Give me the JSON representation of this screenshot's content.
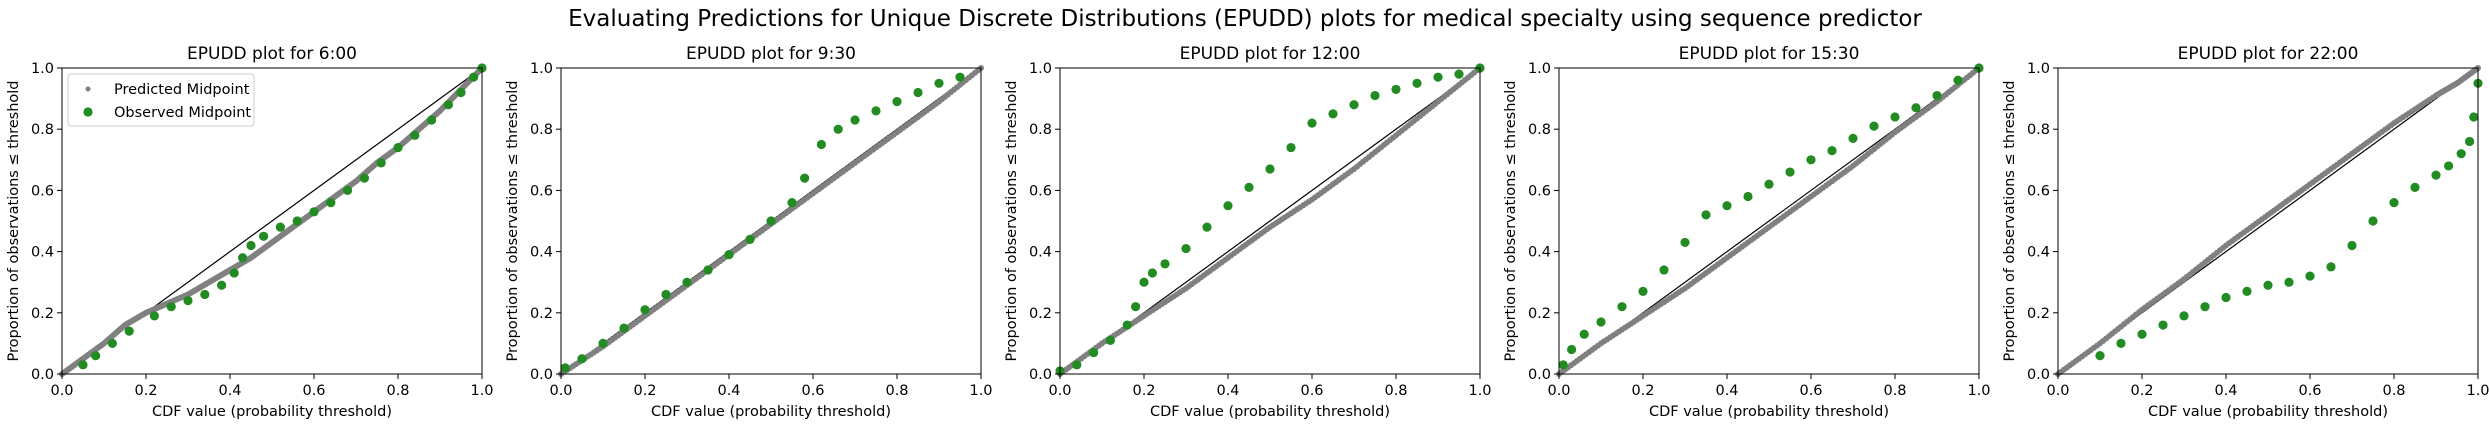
{
  "figure": {
    "suptitle": "Evaluating Predictions for Unique Discrete Distributions (EPUDD) plots for medical specialty using sequence predictor"
  },
  "colors": {
    "predicted": "#808080",
    "observed": "#228B22",
    "diagonal": "#000000"
  },
  "chart_data": [
    {
      "type": "scatter",
      "title": "EPUDD plot for 6:00",
      "xlabel": "CDF value (probability threshold)",
      "ylabel": "Proportion of observations ≤ threshold",
      "xlim": [
        0,
        1
      ],
      "ylim": [
        0,
        1
      ],
      "xticks": [
        "0.0",
        "0.2",
        "0.4",
        "0.6",
        "0.8",
        "1.0"
      ],
      "yticks": [
        "0.0",
        "0.2",
        "0.4",
        "0.6",
        "0.8",
        "1.0"
      ],
      "grid": false,
      "legend": {
        "placement": "top-left",
        "entries": [
          "Predicted Midpoint",
          "Observed Midpoint"
        ]
      },
      "reference_line": "y = x",
      "series": [
        {
          "name": "Predicted Midpoint",
          "marker": "small-dot",
          "x": [
            0,
            0.05,
            0.1,
            0.15,
            0.2,
            0.25,
            0.3,
            0.35,
            0.4,
            0.45,
            0.5,
            0.55,
            0.6,
            0.65,
            0.7,
            0.75,
            0.8,
            0.85,
            0.9,
            0.95,
            1.0
          ],
          "y": [
            0,
            0.05,
            0.1,
            0.16,
            0.2,
            0.23,
            0.26,
            0.3,
            0.34,
            0.38,
            0.43,
            0.48,
            0.53,
            0.58,
            0.63,
            0.69,
            0.74,
            0.8,
            0.86,
            0.93,
            1.0
          ]
        },
        {
          "name": "Observed Midpoint",
          "marker": "dot",
          "x": [
            0.05,
            0.08,
            0.12,
            0.16,
            0.22,
            0.26,
            0.3,
            0.34,
            0.38,
            0.41,
            0.43,
            0.45,
            0.48,
            0.52,
            0.56,
            0.6,
            0.64,
            0.68,
            0.72,
            0.76,
            0.8,
            0.84,
            0.88,
            0.92,
            0.95,
            0.98,
            1.0
          ],
          "y": [
            0.03,
            0.06,
            0.1,
            0.14,
            0.19,
            0.22,
            0.24,
            0.26,
            0.29,
            0.33,
            0.38,
            0.42,
            0.45,
            0.48,
            0.5,
            0.53,
            0.56,
            0.6,
            0.64,
            0.69,
            0.74,
            0.78,
            0.83,
            0.88,
            0.92,
            0.97,
            1.0
          ]
        }
      ]
    },
    {
      "type": "scatter",
      "title": "EPUDD plot for 9:30",
      "xlabel": "CDF value (probability threshold)",
      "ylabel": "Proportion of observations ≤ threshold",
      "xlim": [
        0,
        1
      ],
      "ylim": [
        0,
        1
      ],
      "xticks": [
        "0.0",
        "0.2",
        "0.4",
        "0.6",
        "0.8",
        "1.0"
      ],
      "yticks": [
        "0.0",
        "0.2",
        "0.4",
        "0.6",
        "0.8",
        "1.0"
      ],
      "grid": false,
      "reference_line": "y = x",
      "series": [
        {
          "name": "Predicted Midpoint",
          "marker": "small-dot",
          "x": [
            0,
            0.1,
            0.2,
            0.3,
            0.4,
            0.5,
            0.6,
            0.7,
            0.8,
            0.9,
            1.0
          ],
          "y": [
            0,
            0.09,
            0.19,
            0.29,
            0.39,
            0.49,
            0.59,
            0.69,
            0.79,
            0.89,
            1.0
          ]
        },
        {
          "name": "Observed Midpoint",
          "marker": "dot",
          "x": [
            0.01,
            0.05,
            0.1,
            0.15,
            0.2,
            0.25,
            0.3,
            0.35,
            0.4,
            0.45,
            0.5,
            0.55,
            0.58,
            0.62,
            0.66,
            0.7,
            0.75,
            0.8,
            0.85,
            0.9,
            0.95
          ],
          "y": [
            0.02,
            0.05,
            0.1,
            0.15,
            0.21,
            0.26,
            0.3,
            0.34,
            0.39,
            0.44,
            0.5,
            0.56,
            0.64,
            0.75,
            0.8,
            0.83,
            0.86,
            0.89,
            0.92,
            0.95,
            0.97
          ]
        }
      ]
    },
    {
      "type": "scatter",
      "title": "EPUDD plot for 12:00",
      "xlabel": "CDF value (probability threshold)",
      "ylabel": "Proportion of observations ≤ threshold",
      "xlim": [
        0,
        1
      ],
      "ylim": [
        0,
        1
      ],
      "xticks": [
        "0.0",
        "0.2",
        "0.4",
        "0.6",
        "0.8",
        "1.0"
      ],
      "yticks": [
        "0.0",
        "0.2",
        "0.4",
        "0.6",
        "0.8",
        "1.0"
      ],
      "grid": false,
      "reference_line": "y = x",
      "series": [
        {
          "name": "Predicted Midpoint",
          "marker": "small-dot",
          "x": [
            0,
            0.1,
            0.2,
            0.3,
            0.4,
            0.5,
            0.6,
            0.7,
            0.8,
            0.9,
            1.0
          ],
          "y": [
            0,
            0.1,
            0.19,
            0.28,
            0.38,
            0.48,
            0.57,
            0.67,
            0.78,
            0.89,
            1.0
          ]
        },
        {
          "name": "Observed Midpoint",
          "marker": "dot",
          "x": [
            0.0,
            0.04,
            0.08,
            0.12,
            0.16,
            0.18,
            0.2,
            0.22,
            0.25,
            0.3,
            0.35,
            0.4,
            0.45,
            0.5,
            0.55,
            0.6,
            0.65,
            0.7,
            0.75,
            0.8,
            0.85,
            0.9,
            0.95,
            1.0
          ],
          "y": [
            0.01,
            0.03,
            0.07,
            0.11,
            0.16,
            0.22,
            0.3,
            0.33,
            0.36,
            0.41,
            0.48,
            0.55,
            0.61,
            0.67,
            0.74,
            0.82,
            0.85,
            0.88,
            0.91,
            0.93,
            0.95,
            0.97,
            0.98,
            1.0
          ]
        }
      ]
    },
    {
      "type": "scatter",
      "title": "EPUDD plot for 15:30",
      "xlabel": "CDF value (probability threshold)",
      "ylabel": "Proportion of observations ≤ threshold",
      "xlim": [
        0,
        1
      ],
      "ylim": [
        0,
        1
      ],
      "xticks": [
        "0.0",
        "0.2",
        "0.4",
        "0.6",
        "0.8",
        "1.0"
      ],
      "yticks": [
        "0.0",
        "0.2",
        "0.4",
        "0.6",
        "0.8",
        "1.0"
      ],
      "grid": false,
      "reference_line": "y = x",
      "series": [
        {
          "name": "Predicted Midpoint",
          "marker": "small-dot",
          "x": [
            0,
            0.1,
            0.2,
            0.3,
            0.4,
            0.5,
            0.6,
            0.7,
            0.8,
            0.9,
            1.0
          ],
          "y": [
            0,
            0.1,
            0.19,
            0.28,
            0.38,
            0.48,
            0.58,
            0.68,
            0.79,
            0.89,
            1.0
          ]
        },
        {
          "name": "Observed Midpoint",
          "marker": "dot",
          "x": [
            0.01,
            0.03,
            0.06,
            0.1,
            0.15,
            0.2,
            0.25,
            0.3,
            0.35,
            0.4,
            0.45,
            0.5,
            0.55,
            0.6,
            0.65,
            0.7,
            0.75,
            0.8,
            0.85,
            0.9,
            0.95,
            1.0
          ],
          "y": [
            0.03,
            0.08,
            0.13,
            0.17,
            0.22,
            0.27,
            0.34,
            0.43,
            0.52,
            0.55,
            0.58,
            0.62,
            0.66,
            0.7,
            0.73,
            0.77,
            0.81,
            0.84,
            0.87,
            0.91,
            0.96,
            1.0
          ]
        }
      ]
    },
    {
      "type": "scatter",
      "title": "EPUDD plot for 22:00",
      "xlabel": "CDF value (probability threshold)",
      "ylabel": "Proportion of observations ≤ threshold",
      "xlim": [
        0,
        1
      ],
      "ylim": [
        0,
        1
      ],
      "xticks": [
        "0.0",
        "0.2",
        "0.4",
        "0.6",
        "0.8",
        "1.0"
      ],
      "yticks": [
        "0.0",
        "0.2",
        "0.4",
        "0.6",
        "0.8",
        "1.0"
      ],
      "grid": false,
      "reference_line": "y = x",
      "series": [
        {
          "name": "Predicted Midpoint",
          "marker": "small-dot",
          "x": [
            0,
            0.1,
            0.2,
            0.3,
            0.4,
            0.5,
            0.6,
            0.7,
            0.8,
            0.9,
            0.95,
            1.0
          ],
          "y": [
            0,
            0.1,
            0.21,
            0.31,
            0.42,
            0.52,
            0.62,
            0.72,
            0.82,
            0.91,
            0.95,
            1.0
          ]
        },
        {
          "name": "Observed Midpoint",
          "marker": "dot",
          "x": [
            0.1,
            0.15,
            0.2,
            0.25,
            0.3,
            0.35,
            0.4,
            0.45,
            0.5,
            0.55,
            0.6,
            0.65,
            0.7,
            0.75,
            0.8,
            0.85,
            0.9,
            0.93,
            0.96,
            0.98,
            0.99,
            1.0
          ],
          "y": [
            0.06,
            0.1,
            0.13,
            0.16,
            0.19,
            0.22,
            0.25,
            0.27,
            0.29,
            0.3,
            0.32,
            0.35,
            0.42,
            0.5,
            0.56,
            0.61,
            0.65,
            0.68,
            0.72,
            0.76,
            0.84,
            0.95
          ]
        }
      ]
    }
  ]
}
